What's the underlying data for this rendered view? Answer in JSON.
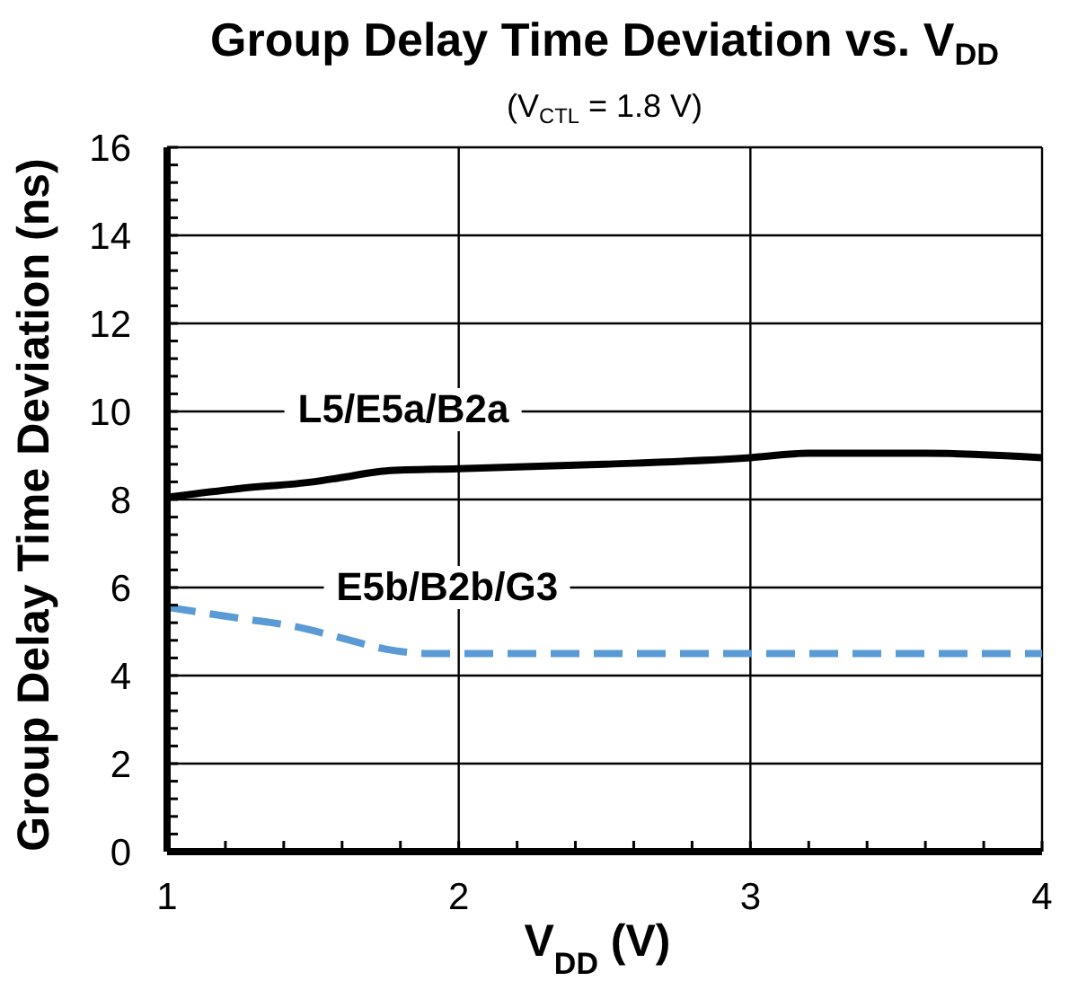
{
  "chart_data": {
    "type": "line",
    "title": "Group Delay Time Deviation vs. V$_{DD}$",
    "subtitle": "(V$_{CTL}$ = 1.8 V)",
    "xlabel": "V$_{DD}$ (V)",
    "ylabel": "Group Delay Time Deviation (ns)",
    "xlim": [
      1,
      4
    ],
    "xticks": [
      1,
      {
        "value": 1.2,
        "label": null
      },
      {
        "value": 1.4,
        "label": null
      },
      {
        "value": 1.6,
        "label": null
      },
      {
        "value": 1.8,
        "label": null
      },
      2,
      {
        "value": 2.2,
        "label": null
      },
      {
        "value": 2.4,
        "label": null
      },
      {
        "value": 2.6,
        "label": null
      },
      {
        "value": 2.8,
        "label": null
      },
      3,
      {
        "value": 3.2,
        "label": null
      },
      {
        "value": 3.4,
        "label": null
      },
      {
        "value": 3.6,
        "label": null
      },
      {
        "value": 3.8,
        "label": null
      },
      4
    ],
    "ylim": [
      0,
      16
    ],
    "yticks": [
      0,
      {
        "value": 0.4,
        "label": null
      },
      {
        "value": 0.8,
        "label": null
      },
      {
        "value": 1.2,
        "label": null
      },
      {
        "value": 1.6,
        "label": null
      },
      2,
      {
        "value": 2.4,
        "label": null
      },
      {
        "value": 2.8,
        "label": null
      },
      {
        "value": 3.2,
        "label": null
      },
      {
        "value": 3.6,
        "label": null
      },
      4,
      {
        "value": 4.4,
        "label": null
      },
      {
        "value": 4.8,
        "label": null
      },
      {
        "value": 5.2,
        "label": null
      },
      {
        "value": 5.6,
        "label": null
      },
      6,
      {
        "value": 6.4,
        "label": null
      },
      {
        "value": 6.8,
        "label": null
      },
      {
        "value": 7.2,
        "label": null
      },
      {
        "value": 7.6,
        "label": null
      },
      8,
      {
        "value": 8.4,
        "label": null
      },
      {
        "value": 8.8,
        "label": null
      },
      {
        "value": 9.2,
        "label": null
      },
      {
        "value": 9.6,
        "label": null
      },
      10,
      {
        "value": 10.4,
        "label": null
      },
      {
        "value": 10.8,
        "label": null
      },
      {
        "value": 11.2,
        "label": null
      },
      {
        "value": 11.6,
        "label": null
      },
      12,
      {
        "value": 12.4,
        "label": null
      },
      {
        "value": 12.8,
        "label": null
      },
      {
        "value": 13.2,
        "label": null
      },
      {
        "value": 13.6,
        "label": null
      },
      14,
      {
        "value": 14.4,
        "label": null
      },
      {
        "value": 14.8,
        "label": null
      },
      {
        "value": 15.2,
        "label": null
      },
      {
        "value": 15.6,
        "label": null
      },
      16
    ],
    "grid": true,
    "legend": false,
    "marker": "none",
    "series": [
      {
        "name": "L5/E5a/B2a",
        "color": "#000000",
        "line_style": "solid",
        "x": [
          1,
          1.25,
          1.5,
          1.6,
          1.75,
          2,
          2.5,
          3,
          3.2,
          3.4,
          3.6,
          4
        ],
        "values": [
          8.05,
          8.25,
          8.4,
          8.5,
          8.65,
          8.7,
          8.8,
          8.95,
          9.05,
          9.05,
          9.05,
          8.95
        ]
      },
      {
        "name": "E5b/B2b/G3",
        "color": "#5b9bd5",
        "line_style": "dashed",
        "x": [
          1,
          1.25,
          1.45,
          1.6,
          1.75,
          1.9,
          2,
          2.5,
          3,
          3.5,
          4
        ],
        "values": [
          5.55,
          5.3,
          5.1,
          4.85,
          4.6,
          4.5,
          4.5,
          4.5,
          4.5,
          4.5,
          4.5
        ]
      }
    ]
  }
}
